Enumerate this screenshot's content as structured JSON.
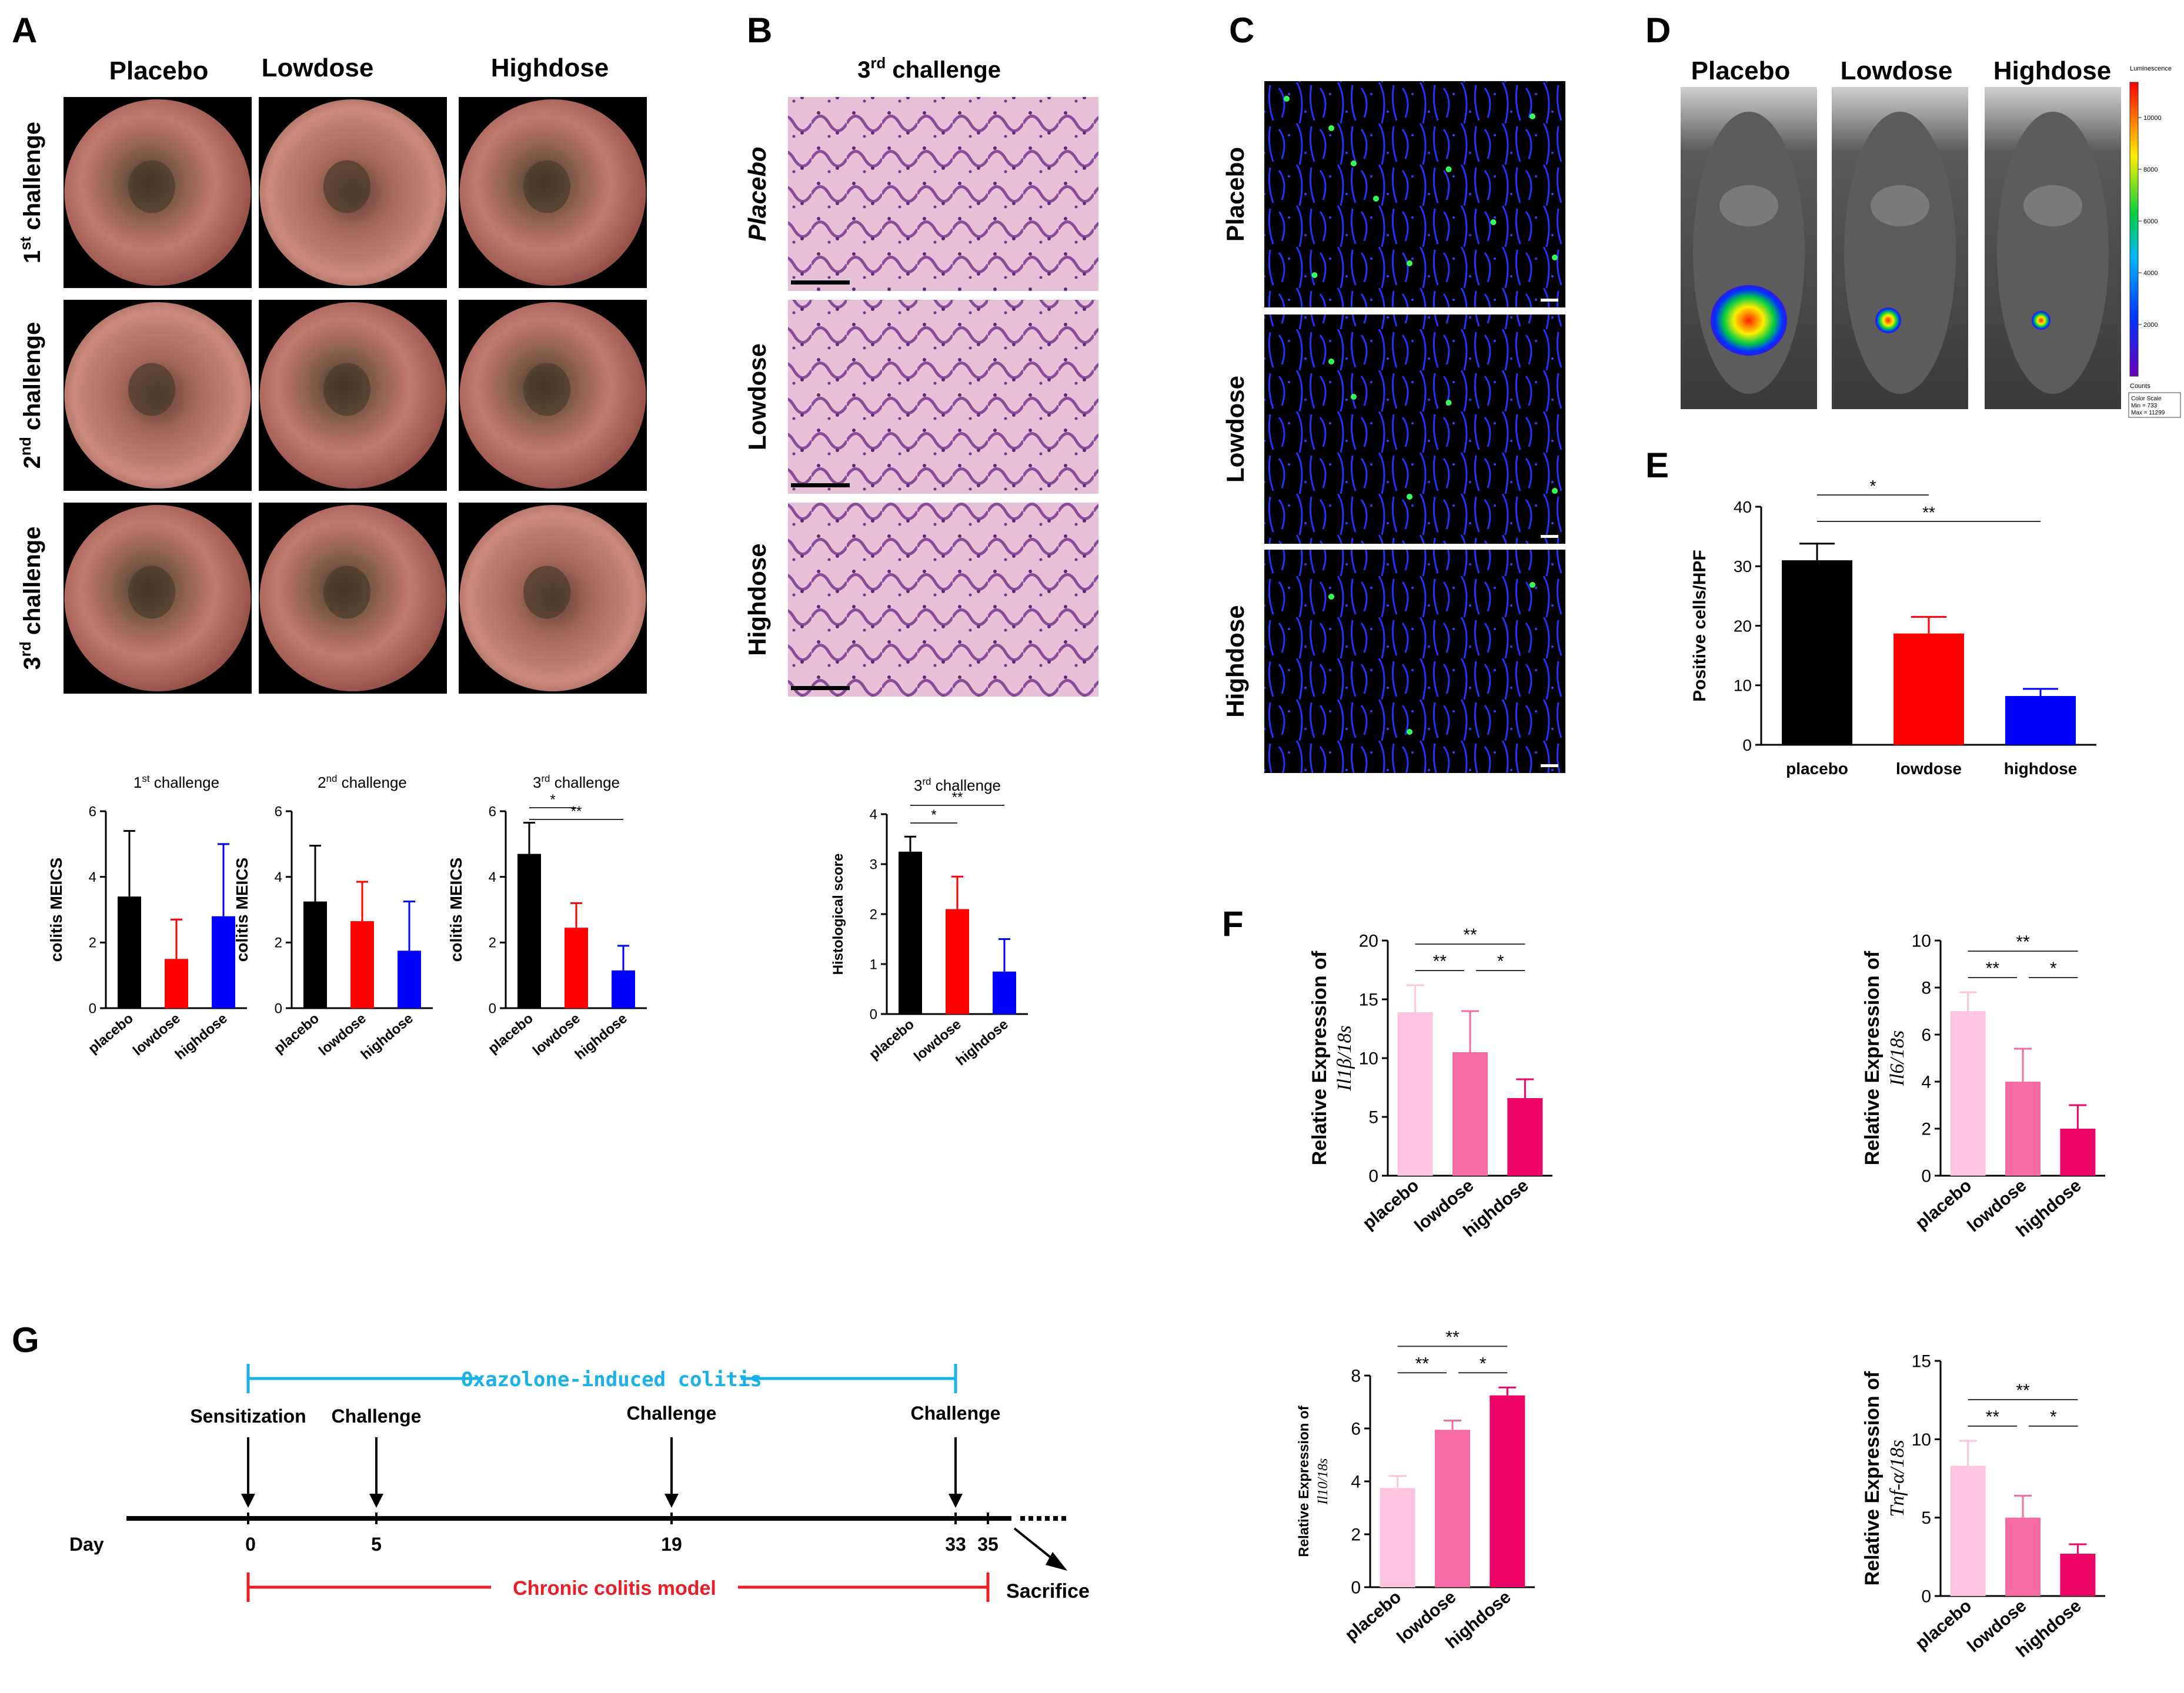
{
  "panel_letters": {
    "A": "A",
    "B": "B",
    "C": "C",
    "D": "D",
    "E": "E",
    "F": "F",
    "G": "G"
  },
  "groups": [
    "Placebo",
    "Lowdose",
    "Highdose"
  ],
  "challenges": [
    {
      "base": "1",
      "sup": "st",
      "rest": " challenge"
    },
    {
      "base": "2",
      "sup": "nd",
      "rest": " challenge"
    },
    {
      "base": "3",
      "sup": "rd",
      "rest": " challenge"
    }
  ],
  "B_title": {
    "base": "3",
    "sup": "rd",
    "rest": " challenge"
  },
  "D_colorbar": {
    "title": "Luminescence",
    "ticks": [
      "10000",
      "8000",
      "6000",
      "4000",
      "2000"
    ],
    "counts_label": "Counts",
    "scale_lines": [
      "Color Scale",
      "Min = 733",
      "Max = 11299"
    ]
  },
  "chart_data": [
    {
      "id": "A1",
      "type": "bar",
      "title": "1st challenge",
      "categories": [
        "placebo",
        "lowdose",
        "highdose"
      ],
      "values": [
        3.4,
        1.5,
        2.8
      ],
      "errors": [
        2.0,
        1.2,
        2.2
      ],
      "colors": [
        "#000000",
        "#ff0000",
        "#0000ff"
      ],
      "ylabel": "colitis MEICS",
      "ylim": [
        0,
        6
      ],
      "yticks": [
        0,
        2,
        4,
        6
      ],
      "sig": []
    },
    {
      "id": "A2",
      "type": "bar",
      "title": "2nd challenge",
      "categories": [
        "placebo",
        "lowdose",
        "highdose"
      ],
      "values": [
        3.25,
        2.65,
        1.75
      ],
      "errors": [
        1.7,
        1.2,
        1.5
      ],
      "colors": [
        "#000000",
        "#ff0000",
        "#0000ff"
      ],
      "ylabel": "colitis MEICS",
      "ylim": [
        0,
        6
      ],
      "yticks": [
        0,
        2,
        4,
        6
      ],
      "sig": []
    },
    {
      "id": "A3",
      "type": "bar",
      "title": "3rd challenge",
      "categories": [
        "placebo",
        "lowdose",
        "highdose"
      ],
      "values": [
        4.7,
        2.45,
        1.15
      ],
      "errors": [
        0.95,
        0.75,
        0.75
      ],
      "colors": [
        "#000000",
        "#ff0000",
        "#0000ff"
      ],
      "ylabel": "colitis MEICS",
      "ylim": [
        0,
        6
      ],
      "yticks": [
        0,
        2,
        4,
        6
      ],
      "sig": [
        {
          "from": 0,
          "to": 1,
          "label": "*"
        },
        {
          "from": 0,
          "to": 2,
          "label": "**"
        }
      ]
    },
    {
      "id": "B1",
      "type": "bar",
      "title": "3rd challenge",
      "categories": [
        "placebo",
        "lowdose",
        "highdose"
      ],
      "values": [
        3.25,
        2.1,
        0.85
      ],
      "errors": [
        0.3,
        0.65,
        0.65
      ],
      "colors": [
        "#000000",
        "#ff0000",
        "#0000ff"
      ],
      "ylabel": "Histological score",
      "ylim": [
        0,
        4
      ],
      "yticks": [
        0,
        1,
        2,
        3,
        4
      ],
      "sig": [
        {
          "from": 0,
          "to": 2,
          "label": "**"
        },
        {
          "from": 0,
          "to": 1,
          "label": "*"
        }
      ]
    },
    {
      "id": "E",
      "type": "bar",
      "title": "",
      "categories": [
        "placebo",
        "lowdose",
        "highdose"
      ],
      "values": [
        31,
        18.7,
        8.2
      ],
      "errors": [
        2.8,
        2.8,
        1.2
      ],
      "colors": [
        "#000000",
        "#ff0000",
        "#0000ff"
      ],
      "ylabel": "Positive cells/HPF",
      "ylim": [
        0,
        40
      ],
      "yticks": [
        0,
        10,
        20,
        30,
        40
      ],
      "sig": [
        {
          "from": 0,
          "to": 1,
          "label": "*"
        },
        {
          "from": 0,
          "to": 2,
          "label": "**"
        }
      ]
    },
    {
      "id": "F1",
      "type": "bar",
      "title": "",
      "categories": [
        "placebo",
        "lowdose",
        "highdose"
      ],
      "values": [
        13.9,
        10.5,
        6.6
      ],
      "errors": [
        2.3,
        3.5,
        1.6
      ],
      "colors": [
        "#ffc4df",
        "#f66aa3",
        "#ec0467"
      ],
      "ylabel": "Relative  Expression of",
      "ylabel_gene": "Il1β/18s",
      "ylim": [
        0,
        20
      ],
      "yticks": [
        0,
        5,
        10,
        15,
        20
      ],
      "sig": [
        {
          "from": 0,
          "to": 2,
          "label": "**"
        },
        {
          "from": 0,
          "to": 1,
          "label": "**"
        },
        {
          "from": 1,
          "to": 2,
          "label": "*"
        }
      ]
    },
    {
      "id": "F2",
      "type": "bar",
      "title": "",
      "categories": [
        "placebo",
        "lowdose",
        "highdose"
      ],
      "values": [
        7,
        4,
        2
      ],
      "errors": [
        0.8,
        1.4,
        1.0
      ],
      "colors": [
        "#ffc4df",
        "#f66aa3",
        "#ec0467"
      ],
      "ylabel": "Relative  Expression of",
      "ylabel_gene": "Il6/18s",
      "ylim": [
        0,
        10
      ],
      "yticks": [
        0,
        2,
        4,
        6,
        8,
        10
      ],
      "sig": [
        {
          "from": 0,
          "to": 2,
          "label": "**"
        },
        {
          "from": 0,
          "to": 1,
          "label": "**"
        },
        {
          "from": 1,
          "to": 2,
          "label": "*"
        }
      ]
    },
    {
      "id": "F3",
      "type": "bar",
      "title": "",
      "categories": [
        "placebo",
        "lowdose",
        "highdose"
      ],
      "values": [
        3.75,
        5.95,
        7.25
      ],
      "errors": [
        0.45,
        0.35,
        0.3
      ],
      "colors": [
        "#ffc4df",
        "#f66aa3",
        "#ec0467"
      ],
      "ylabel": "Relative  Expression of",
      "ylabel_gene": "Il10/18s",
      "ylim": [
        0,
        8
      ],
      "yticks": [
        0,
        2,
        4,
        6,
        8
      ],
      "sig": [
        {
          "from": 0,
          "to": 2,
          "label": "**"
        },
        {
          "from": 0,
          "to": 1,
          "label": "**"
        },
        {
          "from": 1,
          "to": 2,
          "label": "*"
        }
      ]
    },
    {
      "id": "F4",
      "type": "bar",
      "title": "",
      "categories": [
        "placebo",
        "lowdose",
        "highdose"
      ],
      "values": [
        8.3,
        5,
        2.7
      ],
      "errors": [
        1.6,
        1.4,
        0.6
      ],
      "colors": [
        "#ffc4df",
        "#f66aa3",
        "#ec0467"
      ],
      "ylabel": "Relative  Expression of",
      "ylabel_gene": "Tnf-α/18s",
      "ylim": [
        0,
        15
      ],
      "yticks": [
        0,
        5,
        10,
        15
      ],
      "sig": [
        {
          "from": 0,
          "to": 2,
          "label": "**"
        },
        {
          "from": 0,
          "to": 1,
          "label": "**"
        },
        {
          "from": 1,
          "to": 2,
          "label": "*"
        }
      ]
    }
  ],
  "timeline": {
    "top_label": "Oxazolone-induced colitis",
    "bottom_label": "Chronic colitis model",
    "events": [
      {
        "label": "Sensitization",
        "day": "0"
      },
      {
        "label": "Challenge",
        "day": "5"
      },
      {
        "label": "Challenge",
        "day": "19"
      },
      {
        "label": "Challenge",
        "day": "33"
      }
    ],
    "extra_days": [
      "35"
    ],
    "day_label": "Day",
    "end_label": "Sacrifice",
    "top_color": "#1ab0e8",
    "bottom_color": "#ee1c24"
  }
}
